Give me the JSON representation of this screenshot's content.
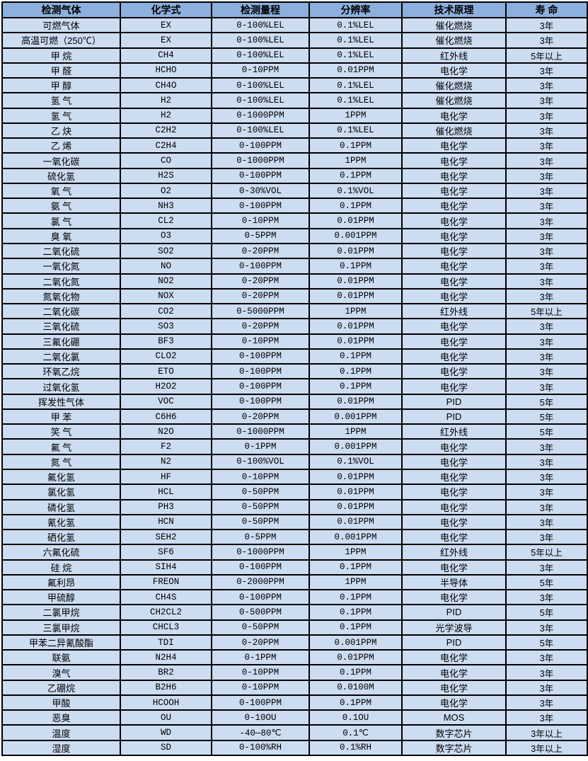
{
  "colors": {
    "header_bg": "#8db1de",
    "row_bg": "#ccdcf1",
    "grid": "#000000",
    "text": "#000000",
    "page_bg": "#ffffff"
  },
  "table": {
    "headers": [
      "检测气体",
      "化学式",
      "检测量程",
      "分辨率",
      "技术原理",
      "寿 命"
    ],
    "rows": [
      [
        "可燃气体",
        "EX",
        "0-100%LEL",
        "0.1%LEL",
        "催化燃烧",
        "3年"
      ],
      [
        "高温可燃（250℃）",
        "EX",
        "0-100%LEL",
        "0.1%LEL",
        "催化燃烧",
        "3年"
      ],
      [
        "甲 烷",
        "CH4",
        "0-100%LEL",
        "0.1%LEL",
        "红外线",
        "5年以上"
      ],
      [
        "甲 醛",
        "HCHO",
        "0-10PPM",
        "0.01PPM",
        "电化学",
        "3年"
      ],
      [
        "甲 醇",
        "CH4O",
        "0-100%LEL",
        "0.1%LEL",
        "催化燃烧",
        "3年"
      ],
      [
        "氢 气",
        "H2",
        "0-100%LEL",
        "0.1%LEL",
        "催化燃烧",
        "3年"
      ],
      [
        "氢 气",
        "H2",
        "0-1000PPM",
        "1PPM",
        "电化学",
        "3年"
      ],
      [
        "乙 炔",
        "C2H2",
        "0-100%LEL",
        "0.1%LEL",
        "催化燃烧",
        "3年"
      ],
      [
        "乙 烯",
        "C2H4",
        "0-100PPM",
        "0.1PPM",
        "电化学",
        "3年"
      ],
      [
        "一氧化碳",
        "CO",
        "0-1000PPM",
        "1PPM",
        "电化学",
        "3年"
      ],
      [
        "硫化氢",
        "H2S",
        "0-100PPM",
        "0.1PPM",
        "电化学",
        "3年"
      ],
      [
        "氧 气",
        "O2",
        "0-30%VOL",
        "0.1%VOL",
        "电化学",
        "3年"
      ],
      [
        "氨 气",
        "NH3",
        "0-100PPM",
        "0.1PPM",
        "电化学",
        "3年"
      ],
      [
        "氯 气",
        "CL2",
        "0-10PPM",
        "0.01PPM",
        "电化学",
        "3年"
      ],
      [
        "臭 氧",
        "O3",
        "0-5PPM",
        "0.001PPM",
        "电化学",
        "3年"
      ],
      [
        "二氧化硫",
        "SO2",
        "0-20PPM",
        "0.01PPM",
        "电化学",
        "3年"
      ],
      [
        "一氧化氮",
        "NO",
        "0-100PPM",
        "0.1PPM",
        "电化学",
        "3年"
      ],
      [
        "二氧化氮",
        "NO2",
        "0-20PPM",
        "0.01PPM",
        "电化学",
        "3年"
      ],
      [
        "氮氧化物",
        "NOX",
        "0-20PPM",
        "0.01PPM",
        "电化学",
        "3年"
      ],
      [
        "二氧化碳",
        "CO2",
        "0-5000PPM",
        "1PPM",
        "红外线",
        "5年以上"
      ],
      [
        "三氧化硫",
        "SO3",
        "0-20PPM",
        "0.01PPM",
        "电化学",
        "3年"
      ],
      [
        "三氟化硼",
        "BF3",
        "0-10PPM",
        "0.01PPM",
        "电化学",
        "3年"
      ],
      [
        "二氧化氯",
        "CLO2",
        "0-100PPM",
        "0.1PPM",
        "电化学",
        "3年"
      ],
      [
        "环氧乙烷",
        "ETO",
        "0-100PPM",
        "0.1PPM",
        "电化学",
        "3年"
      ],
      [
        "过氧化氢",
        "H2O2",
        "0-100PPM",
        "0.1PPM",
        "电化学",
        "3年"
      ],
      [
        "挥发性气体",
        "VOC",
        "0-100PPM",
        "0.01PPM",
        "PID",
        "5年"
      ],
      [
        "甲 苯",
        "C6H6",
        "0-20PPM",
        "0.001PPM",
        "PID",
        "5年"
      ],
      [
        "笑 气",
        "N2O",
        "0-1000PPM",
        "1PPM",
        "红外线",
        "5年"
      ],
      [
        "氟 气",
        "F2",
        "0-1PPM",
        "0.001PPM",
        "电化学",
        "3年"
      ],
      [
        "氮 气",
        "N2",
        "0-100%VOL",
        "0.1%VOL",
        "电化学",
        "3年"
      ],
      [
        "氟化氢",
        "HF",
        "0-10PPM",
        "0.01PPM",
        "电化学",
        "3年"
      ],
      [
        "氯化氢",
        "HCL",
        "0-50PPM",
        "0.01PPM",
        "电化学",
        "3年"
      ],
      [
        "磷化氢",
        "PH3",
        "0-50PPM",
        "0.01PPM",
        "电化学",
        "3年"
      ],
      [
        "氰化氢",
        "HCN",
        "0-50PPM",
        "0.01PPM",
        "电化学",
        "3年"
      ],
      [
        "硒化氢",
        "SEH2",
        "0-5PPM",
        "0.001PPM",
        "电化学",
        "3年"
      ],
      [
        "六氟化硫",
        "SF6",
        "0-1000PPM",
        "1PPM",
        "红外线",
        "5年以上"
      ],
      [
        "硅 烷",
        "SIH4",
        "0-100PPM",
        "0.1PPM",
        "电化学",
        "3年"
      ],
      [
        "氟利昂",
        "FREON",
        "0-2000PPM",
        "1PPM",
        "半导体",
        "5年"
      ],
      [
        "甲硫醇",
        "CH4S",
        "0-100PPM",
        "0.1PPM",
        "电化学",
        "3年"
      ],
      [
        "二氯甲烷",
        "CH2CL2",
        "0-500PPM",
        "0.1PPM",
        "PID",
        "5年"
      ],
      [
        "三氯甲烷",
        "CHCL3",
        "0-50PPM",
        "0.1PPM",
        "光学波导",
        "3年"
      ],
      [
        "甲苯二异氰酸酯",
        "TDI",
        "0-20PPM",
        "0.001PPM",
        "PID",
        "5年"
      ],
      [
        "联氨",
        "N2H4",
        "0-1PPM",
        "0.01PPM",
        "电化学",
        "3年"
      ],
      [
        "溴气",
        "BR2",
        "0-10PPM",
        "0.1PPM",
        "电化学",
        "3年"
      ],
      [
        "乙硼烷",
        "B2H6",
        "0-10PPM",
        "0.0100M",
        "电化学",
        "3年"
      ],
      [
        "甲酸",
        "HCOOH",
        "0-100PPM",
        "0.1PPM",
        "电化学",
        "3年"
      ],
      [
        "恶臭",
        "OU",
        "0-10OU",
        "0.1OU",
        "MOS",
        "3年"
      ],
      [
        "温度",
        "WD",
        "-40—80℃",
        "0.1℃",
        "数字芯片",
        "3年以上"
      ],
      [
        "湿度",
        "SD",
        "0-100%RH",
        "0.1%RH",
        "数字芯片",
        "3年以上"
      ]
    ]
  }
}
